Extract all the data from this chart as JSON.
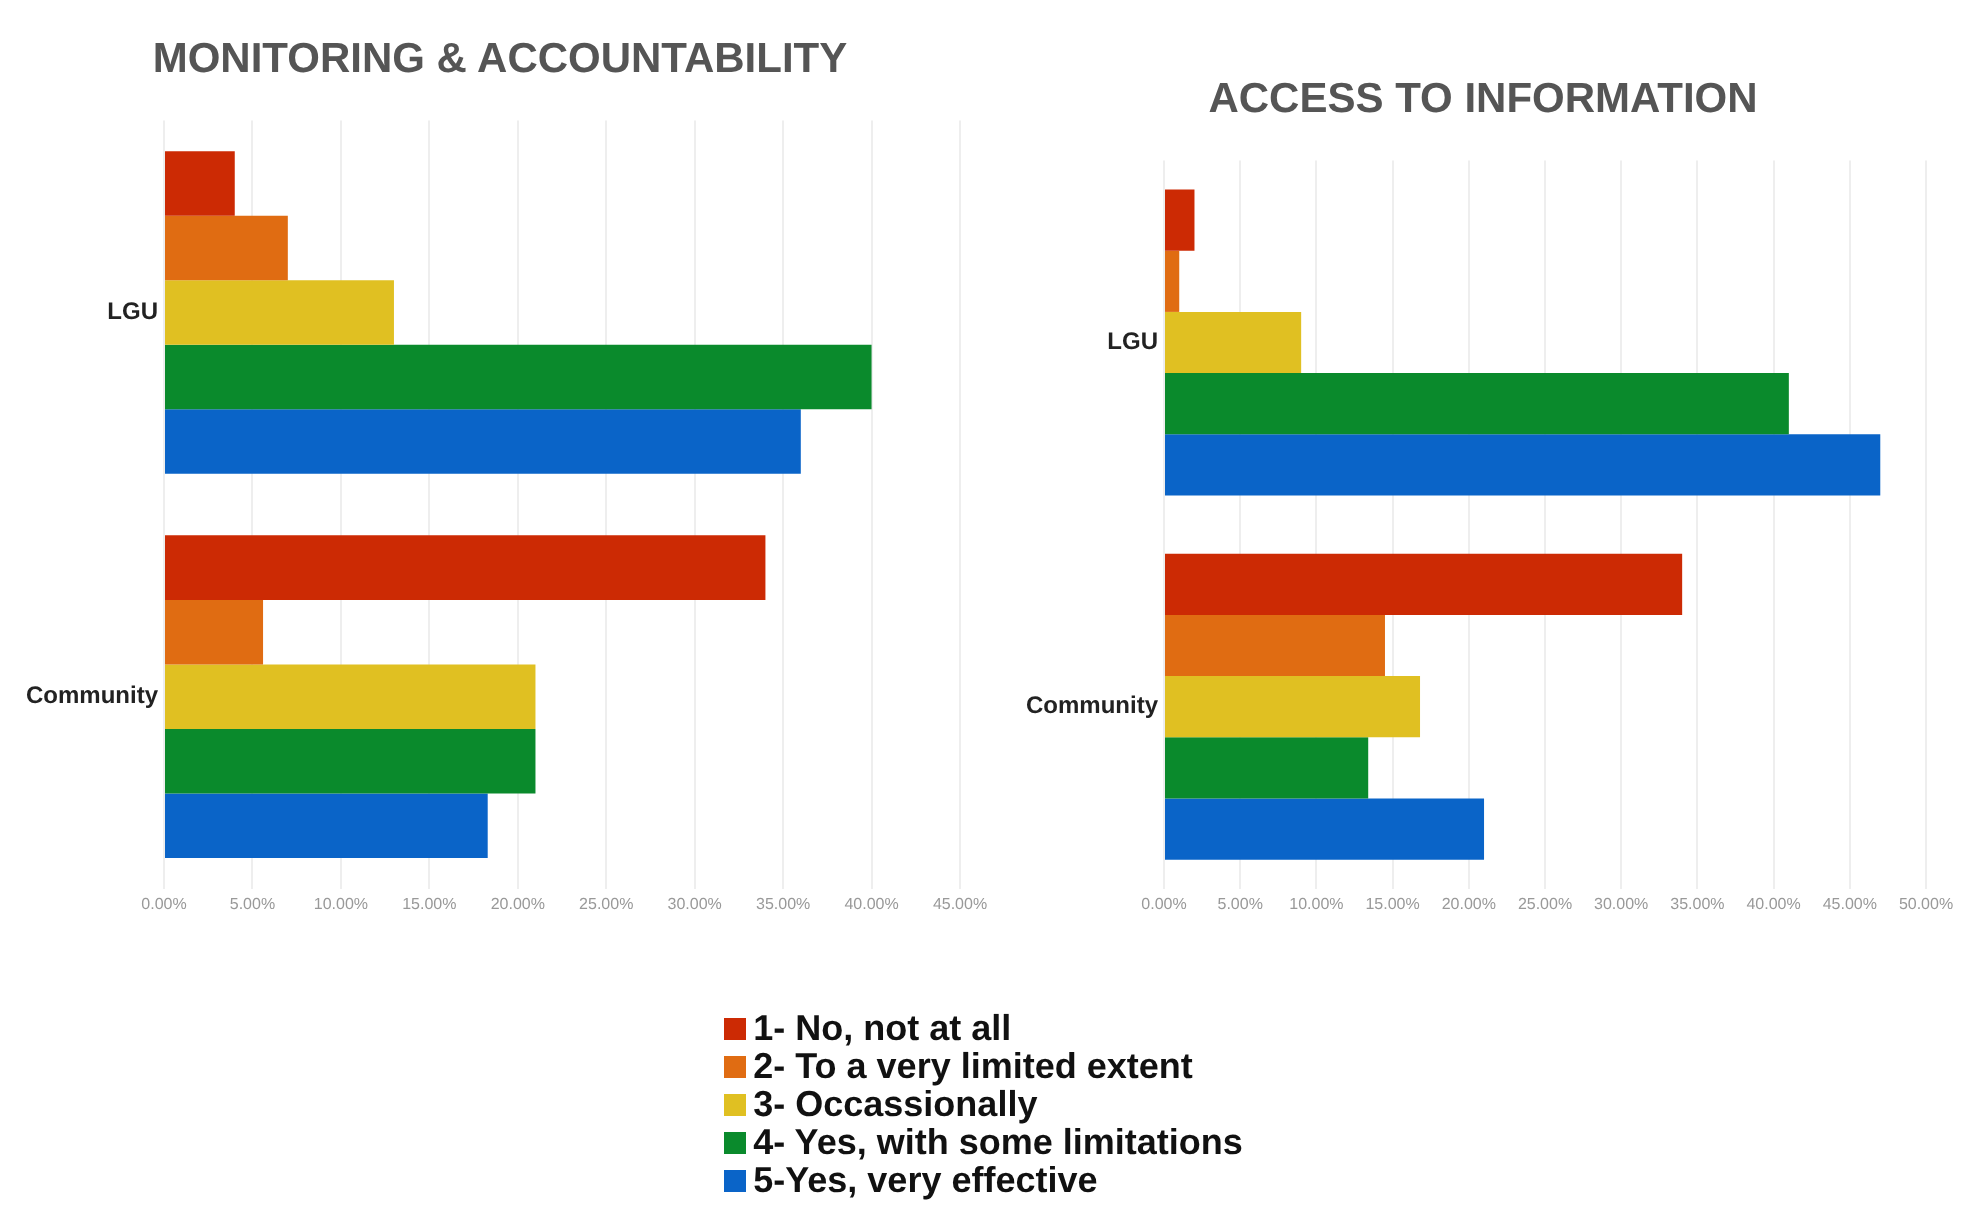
{
  "chart_data": [
    {
      "type": "bar",
      "orientation": "horizontal",
      "title": "MONITORING & ACCOUNTABILITY",
      "categories": [
        "LGU",
        "Community"
      ],
      "series": [
        {
          "name": "1- No, not at all",
          "color": "#cc2a04",
          "values": [
            4,
            34
          ]
        },
        {
          "name": "2- To a very limited extent",
          "color": "#e06c12",
          "values": [
            7,
            5.6
          ]
        },
        {
          "name": "3- Occassionally",
          "color": "#e0c022",
          "values": [
            13,
            21
          ]
        },
        {
          "name": "4- Yes, with some limitations",
          "color": "#0a8a2c",
          "values": [
            40,
            21
          ]
        },
        {
          "name": "5-Yes, very effective",
          "color": "#0a64c8",
          "values": [
            36,
            18.3
          ]
        }
      ],
      "xlim": [
        0,
        45
      ],
      "xticks": [
        {
          "value": 0,
          "label": "0.00%"
        },
        {
          "value": 5,
          "label": "5.00%"
        },
        {
          "value": 10,
          "label": "10.00%"
        },
        {
          "value": 15,
          "label": "15.00%"
        },
        {
          "value": 20,
          "label": "20.00%"
        },
        {
          "value": 25,
          "label": "25.00%"
        },
        {
          "value": 30,
          "label": "30.00%"
        },
        {
          "value": 35,
          "label": "35.00%"
        },
        {
          "value": 40,
          "label": "40.00%"
        },
        {
          "value": 45,
          "label": "45.00%"
        }
      ],
      "grid": "x",
      "legend": "bottom"
    },
    {
      "type": "bar",
      "orientation": "horizontal",
      "title": "ACCESS TO INFORMATION",
      "categories": [
        "LGU",
        "Community"
      ],
      "series": [
        {
          "color": "#cc2a04",
          "values": [
            2,
            34
          ]
        },
        {
          "color": "#e06c12",
          "values": [
            1,
            14.5
          ]
        },
        {
          "color": "#e0c022",
          "values": [
            9,
            16.8
          ]
        },
        {
          "color": "#0a8a2c",
          "values": [
            41,
            13.4
          ]
        },
        {
          "color": "#0a64c8",
          "values": [
            47,
            21
          ]
        }
      ],
      "xlim": [
        0,
        50
      ],
      "xticks": [
        {
          "value": 0,
          "label": "0.00%"
        },
        {
          "value": 5,
          "label": "5.00%"
        },
        {
          "value": 10,
          "label": "10.00%"
        },
        {
          "value": 15,
          "label": "15.00%"
        },
        {
          "value": 20,
          "label": "20.00%"
        },
        {
          "value": 25,
          "label": "25.00%"
        },
        {
          "value": 30,
          "label": "30.00%"
        },
        {
          "value": 35,
          "label": "35.00%"
        },
        {
          "value": 40,
          "label": "40.00%"
        },
        {
          "value": 45,
          "label": "45.00%"
        },
        {
          "value": 50,
          "label": "50.00%"
        }
      ],
      "grid": "x"
    }
  ]
}
